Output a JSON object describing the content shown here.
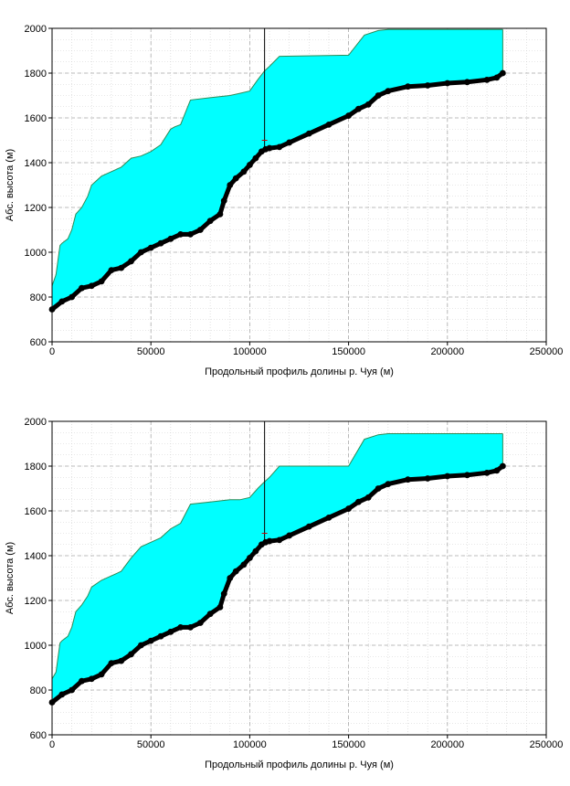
{
  "colors": {
    "valley_fill": "#00FFFF",
    "upper_edge": "#2E8B57",
    "river_profile": "#000000",
    "vertical_marker": "#000000",
    "grid": "#A9A9A9"
  },
  "chart_data": [
    {
      "type": "area",
      "xlabel": "Продольный профиль долины р. Чуя (м)",
      "ylabel": "Абс. высота (м)",
      "xlim": [
        0,
        250000
      ],
      "ylim": [
        600,
        2000
      ],
      "xticks": [
        "0",
        "50000",
        "100000",
        "150000",
        "200000",
        "250000"
      ],
      "yticks": [
        "600",
        "800",
        "1000",
        "1200",
        "1400",
        "1600",
        "1800",
        "2000"
      ],
      "grid": true,
      "vertical_marker_x": 107500,
      "series": [
        {
          "role": "valley upper boundary (filled)",
          "x": [
            0,
            2000,
            4000,
            5000,
            8000,
            10000,
            12000,
            15000,
            18000,
            20000,
            25000,
            30000,
            35000,
            40000,
            45000,
            50000,
            55000,
            60000,
            62000,
            65000,
            70000,
            80000,
            90000,
            95000,
            100000,
            104000,
            107500,
            110000,
            115000,
            150000,
            158000,
            165000,
            170000,
            180000,
            200000,
            210000,
            228000
          ],
          "values": [
            850,
            900,
            1030,
            1040,
            1060,
            1100,
            1170,
            1200,
            1250,
            1300,
            1340,
            1360,
            1380,
            1420,
            1430,
            1450,
            1480,
            1550,
            1560,
            1570,
            1680,
            1690,
            1700,
            1710,
            1720,
            1770,
            1810,
            1830,
            1875,
            1880,
            1970,
            1990,
            1995,
            1995,
            1995,
            1995,
            1995
          ]
        },
        {
          "role": "river longitudinal profile (thalweg)",
          "x": [
            0,
            5000,
            10000,
            15000,
            20000,
            25000,
            30000,
            35000,
            40000,
            45000,
            50000,
            55000,
            60000,
            65000,
            70000,
            75000,
            80000,
            85000,
            87000,
            90000,
            93000,
            97000,
            100000,
            103000,
            106000,
            108000,
            110000,
            115000,
            120000,
            130000,
            140000,
            150000,
            155000,
            160000,
            165000,
            170000,
            180000,
            190000,
            200000,
            210000,
            220000,
            225000,
            228000
          ],
          "values": [
            745,
            780,
            800,
            840,
            850,
            870,
            920,
            930,
            960,
            1000,
            1020,
            1040,
            1060,
            1080,
            1080,
            1100,
            1140,
            1170,
            1230,
            1300,
            1330,
            1360,
            1390,
            1420,
            1450,
            1460,
            1465,
            1470,
            1490,
            1530,
            1570,
            1610,
            1640,
            1660,
            1700,
            1720,
            1740,
            1745,
            1755,
            1760,
            1770,
            1780,
            1800
          ]
        }
      ]
    },
    {
      "type": "area",
      "xlabel": "Продольный профиль долины р. Чуя (м)",
      "ylabel": "Абс. высота (м)",
      "xlim": [
        0,
        250000
      ],
      "ylim": [
        600,
        2000
      ],
      "xticks": [
        "0",
        "50000",
        "100000",
        "150000",
        "200000",
        "250000"
      ],
      "yticks": [
        "600",
        "800",
        "1000",
        "1200",
        "1400",
        "1600",
        "1800",
        "2000"
      ],
      "grid": true,
      "vertical_marker_x": 107500,
      "series": [
        {
          "role": "valley upper boundary (filled)",
          "x": [
            0,
            2000,
            4000,
            5000,
            8000,
            10000,
            12000,
            15000,
            18000,
            20000,
            25000,
            30000,
            35000,
            40000,
            45000,
            50000,
            55000,
            60000,
            62000,
            65000,
            70000,
            80000,
            90000,
            95000,
            100000,
            104000,
            107500,
            110000,
            115000,
            150000,
            158000,
            165000,
            170000,
            180000,
            200000,
            210000,
            228000
          ],
          "values": [
            850,
            880,
            1010,
            1020,
            1040,
            1080,
            1150,
            1180,
            1220,
            1260,
            1290,
            1310,
            1330,
            1390,
            1440,
            1460,
            1480,
            1520,
            1530,
            1545,
            1630,
            1640,
            1650,
            1650,
            1660,
            1700,
            1730,
            1750,
            1800,
            1800,
            1920,
            1940,
            1945,
            1945,
            1945,
            1945,
            1945
          ]
        },
        {
          "role": "river longitudinal profile (thalweg)",
          "x": [
            0,
            5000,
            10000,
            15000,
            20000,
            25000,
            30000,
            35000,
            40000,
            45000,
            50000,
            55000,
            60000,
            65000,
            70000,
            75000,
            80000,
            85000,
            87000,
            90000,
            93000,
            97000,
            100000,
            103000,
            106000,
            108000,
            110000,
            115000,
            120000,
            130000,
            140000,
            150000,
            155000,
            160000,
            165000,
            170000,
            180000,
            190000,
            200000,
            210000,
            220000,
            225000,
            228000
          ],
          "values": [
            745,
            780,
            800,
            840,
            850,
            870,
            920,
            930,
            960,
            1000,
            1020,
            1040,
            1060,
            1080,
            1080,
            1100,
            1140,
            1170,
            1230,
            1300,
            1330,
            1360,
            1390,
            1420,
            1450,
            1460,
            1465,
            1470,
            1490,
            1530,
            1570,
            1610,
            1640,
            1660,
            1700,
            1720,
            1740,
            1745,
            1755,
            1760,
            1770,
            1780,
            1800
          ]
        }
      ]
    }
  ]
}
